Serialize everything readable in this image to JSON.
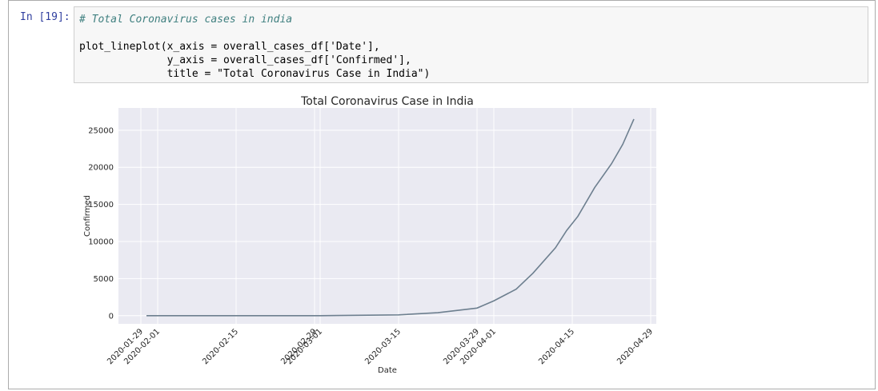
{
  "cell": {
    "prompt": "In [19]:",
    "comment": "# Total Coronavirus cases in india",
    "code_lines": [
      "plot_lineplot(x_axis = overall_cases_df['Date'],",
      "              y_axis = overall_cases_df['Confirmed'],",
      "              title = \"Total Coronavirus Case in India\")"
    ]
  },
  "chart_data": {
    "type": "line",
    "title": "Total Coronavirus Case in India",
    "x_label": "Date",
    "y_label": "Confirmed",
    "x": [
      "2020-01-30",
      "2020-02-15",
      "2020-03-01",
      "2020-03-04",
      "2020-03-15",
      "2020-03-22",
      "2020-03-29",
      "2020-04-01",
      "2020-04-05",
      "2020-04-08",
      "2020-04-12",
      "2020-04-14",
      "2020-04-16",
      "2020-04-19",
      "2020-04-22",
      "2020-04-24",
      "2020-04-26"
    ],
    "values": [
      1,
      3,
      3,
      28,
      110,
      400,
      1024,
      1998,
      3577,
      5734,
      9152,
      11487,
      13387,
      17265,
      20471,
      23077,
      26496
    ],
    "color": "#6d7f8f",
    "xlim": [
      "2020-01-25",
      "2020-04-30"
    ],
    "xticks": [
      "2020-01-29",
      "2020-02-01",
      "2020-02-15",
      "2020-02-29",
      "2020-03-01",
      "2020-03-15",
      "2020-03-29",
      "2020-04-01",
      "2020-04-15",
      "2020-04-29"
    ],
    "ylim": [
      -1100,
      28000
    ],
    "yticks": [
      0,
      5000,
      10000,
      15000,
      20000,
      25000
    ],
    "grid": true
  }
}
